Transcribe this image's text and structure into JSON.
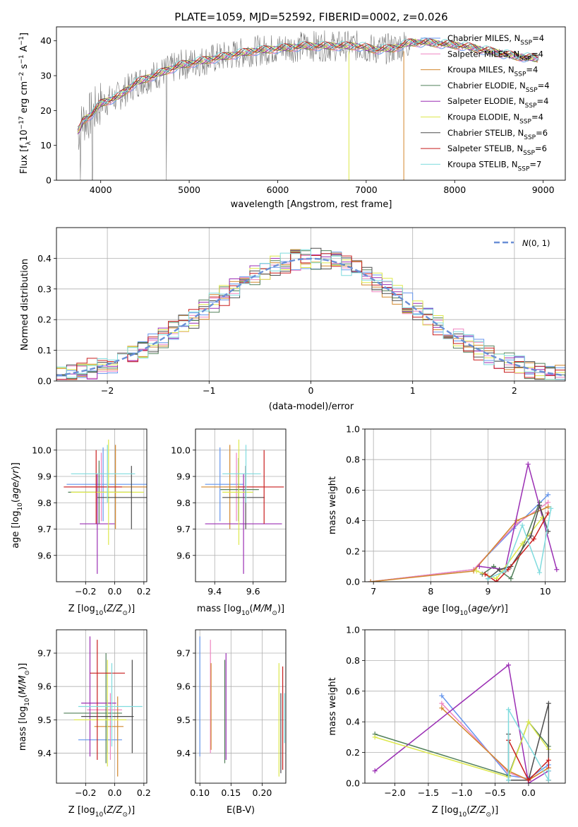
{
  "title": "PLATE=1059, MJD=52592, FIBERID=0002, z=0.026",
  "colors": [
    "#6495ed",
    "#ef85c1",
    "#d2872d",
    "#52805a",
    "#9b2fb4",
    "#dde84c",
    "#4d4d4d",
    "#c81e1e",
    "#7fdbde"
  ],
  "chart_data": [
    {
      "type": "line",
      "panel": "spectrum",
      "title": "PLATE=1059, MJD=52592, FIBERID=0002, z=0.026",
      "xlabel": "wavelength [Angstrom, rest frame]",
      "ylabel": "Flux [f_λ10^-17 erg cm^-2 s^-1 A^-1]",
      "xlim": [
        3500,
        9250
      ],
      "ylim": [
        0,
        44
      ],
      "xticks": [
        "4000",
        "5000",
        "6000",
        "7000",
        "8000",
        "9000"
      ],
      "yticks": [
        "0",
        "10",
        "20",
        "30",
        "40"
      ],
      "grid": false,
      "legend_position": "right",
      "legend": [
        {
          "text": "Chabrier MILES, N_SSP=4",
          "color": "#6495ed"
        },
        {
          "text": "Salpeter MILES, N_SSP=4",
          "color": "#ef85c1"
        },
        {
          "text": "Kroupa MILES, N_SSP=4",
          "color": "#d2872d"
        },
        {
          "text": "Chabrier ELODIE, N_SSP=4",
          "color": "#52805a"
        },
        {
          "text": "Salpeter ELODIE, N_SSP=4",
          "color": "#9b2fb4"
        },
        {
          "text": "Kroupa ELODIE, N_SSP=4",
          "color": "#dde84c"
        },
        {
          "text": "Chabrier STELIB, N_SSP=6",
          "color": "#4d4d4d"
        },
        {
          "text": "Salpeter STELIB, N_SSP=6",
          "color": "#c81e1e"
        },
        {
          "text": "Kroupa STELIB, N_SSP=7",
          "color": "#7fdbde"
        }
      ],
      "model_curve": {
        "x": [
          3750,
          3800,
          3900,
          4000,
          4100,
          4200,
          4300,
          4400,
          4500,
          4700,
          4900,
          5100,
          5300,
          5500,
          5700,
          5900,
          6100,
          6300,
          6500,
          6700,
          6900,
          7100,
          7300,
          7500,
          7700,
          7900,
          8100,
          8300,
          8500,
          8700,
          8900
        ],
        "y": [
          14,
          17,
          19,
          22,
          23,
          24,
          26,
          28,
          29,
          31,
          33,
          34,
          35,
          36,
          37,
          37.5,
          38,
          38.5,
          38.5,
          38.5,
          38.5,
          37.5,
          37.8,
          39.5,
          39.5,
          39,
          38.5,
          37.5,
          36.5,
          35.5,
          35
        ]
      },
      "data_extent": [
        3740,
        8950
      ]
    },
    {
      "type": "histogram",
      "panel": "residuals",
      "xlabel": "(data-model)/error",
      "ylabel": "Normed distribution",
      "xlim": [
        -2.5,
        2.5
      ],
      "ylim": [
        0,
        0.5
      ],
      "xticks": [
        "−2",
        "−1",
        "0",
        "1",
        "2"
      ],
      "yticks": [
        "0.0",
        "0.1",
        "0.2",
        "0.3",
        "0.4"
      ],
      "grid": true,
      "legend_position": "top-right",
      "legend_text": "N(0,1)",
      "gaussian": {
        "mean": 0,
        "sigma": 1,
        "color": "#6a8fd6"
      },
      "bin_width": 0.1,
      "bin_start": -2.5
    },
    {
      "type": "scatter",
      "panel": "age-vs-Z",
      "xlabel": "Z [log10(Z/Z⊙)]",
      "ylabel": "age [log10(age/yr)]",
      "xlim": [
        -0.4,
        0.22
      ],
      "ylim": [
        9.5,
        10.08
      ],
      "xticks": [
        "−0.2",
        "0.0",
        "0.2"
      ],
      "yticks": [
        "9.6",
        "9.7",
        "9.8",
        "9.9",
        "10.0"
      ],
      "grid": true,
      "points": [
        {
          "x": -0.05,
          "xerr": 0.28,
          "y": 9.87,
          "yerr": 0.14
        },
        {
          "x": -0.07,
          "xerr": 0.27,
          "y": 9.86,
          "yerr": 0.13
        },
        {
          "x": 0.02,
          "xerr": 0.25,
          "y": 9.86,
          "yerr": 0.16
        },
        {
          "x": -0.1,
          "xerr": 0.22,
          "y": 9.84,
          "yerr": 0.12
        },
        {
          "x": -0.12,
          "xerr": 0.12,
          "y": 9.72,
          "yerr": 0.19
        },
        {
          "x": -0.05,
          "xerr": 0.25,
          "y": 9.84,
          "yerr": 0.2
        },
        {
          "x": 0.1,
          "xerr": 0.22,
          "y": 9.82,
          "yerr": 0.12
        },
        {
          "x": -0.15,
          "xerr": 0.2,
          "y": 9.86,
          "yerr": 0.14
        },
        {
          "x": -0.08,
          "xerr": 0.22,
          "y": 9.91,
          "yerr": 0.11
        }
      ]
    },
    {
      "type": "scatter",
      "panel": "age-vs-mass",
      "xlabel": "mass [log10(M/M⊙)]",
      "ylabel": "",
      "xlim": [
        9.3,
        9.77
      ],
      "ylim": [
        9.5,
        10.08
      ],
      "xticks": [
        "9.4",
        "9.6"
      ],
      "yticks": [
        "9.6",
        "9.7",
        "9.8",
        "9.9",
        "10.0"
      ],
      "grid": true,
      "points": [
        {
          "x": 9.45,
          "xerr": 0.1,
          "y": 9.87,
          "yerr": 0.14
        },
        {
          "x": 9.53,
          "xerr": 0.08,
          "y": 9.86,
          "yerr": 0.13
        },
        {
          "x": 9.49,
          "xerr": 0.16,
          "y": 9.86,
          "yerr": 0.16
        },
        {
          "x": 9.53,
          "xerr": 0.1,
          "y": 9.85,
          "yerr": 0.12
        },
        {
          "x": 9.55,
          "xerr": 0.2,
          "y": 9.72,
          "yerr": 0.19
        },
        {
          "x": 9.52,
          "xerr": 0.08,
          "y": 9.84,
          "yerr": 0.2
        },
        {
          "x": 9.55,
          "xerr": 0.11,
          "y": 9.82,
          "yerr": 0.12
        },
        {
          "x": 9.64,
          "xerr": 0.12,
          "y": 9.86,
          "yerr": 0.14
        },
        {
          "x": 9.54,
          "xerr": 0.1,
          "y": 9.91,
          "yerr": 0.11
        }
      ]
    },
    {
      "type": "line",
      "panel": "mass-weight-vs-age",
      "xlabel": "age [log10(age/yr)]",
      "ylabel": "mass weight",
      "xlim": [
        6.85,
        10.35
      ],
      "ylim": [
        0,
        1
      ],
      "xticks": [
        "7",
        "8",
        "9",
        "10"
      ],
      "yticks": [
        "0.0",
        "0.2",
        "0.4",
        "0.6",
        "0.8",
        "1.0"
      ],
      "grid": true,
      "series": [
        {
          "x": [
            6.95,
            8.75,
            9.45,
            10.05
          ],
          "y": [
            0,
            0.08,
            0.35,
            0.57
          ]
        },
        {
          "x": [
            6.95,
            8.75,
            9.5,
            10.05
          ],
          "y": [
            0,
            0.08,
            0.38,
            0.52
          ]
        },
        {
          "x": [
            6.95,
            8.75,
            9.5,
            10.05
          ],
          "y": [
            0,
            0.07,
            0.4,
            0.49
          ]
        },
        {
          "x": [
            8.9,
            9.1,
            9.4,
            9.9
          ],
          "y": [
            0.05,
            0.1,
            0.02,
            0.52
          ]
        },
        {
          "x": [
            8.85,
            9.3,
            9.7,
            10.2
          ],
          "y": [
            0.1,
            0.08,
            0.77,
            0.08
          ]
        },
        {
          "x": [
            8.8,
            9.15,
            9.6,
            9.95
          ],
          "y": [
            0.07,
            0.02,
            0.25,
            0.42
          ]
        },
        {
          "x": [
            9.0,
            9.2,
            9.4,
            9.75,
            9.9,
            10.05
          ],
          "y": [
            0.02,
            0.08,
            0.1,
            0.3,
            0.5,
            0.33
          ]
        },
        {
          "x": [
            8.95,
            9.15,
            9.35,
            9.8,
            10.05
          ],
          "y": [
            0.05,
            0,
            0.08,
            0.28,
            0.45
          ]
        },
        {
          "x": [
            9.0,
            9.3,
            9.6,
            9.9,
            10.1
          ],
          "y": [
            0.02,
            0.07,
            0.37,
            0.06,
            0.48
          ]
        }
      ]
    },
    {
      "type": "scatter",
      "panel": "mass-vs-Z",
      "xlabel": "Z [log10(Z/Z⊙)]",
      "ylabel": "mass [log10(M/M⊙)]",
      "xlim": [
        -0.4,
        0.22
      ],
      "ylim": [
        9.31,
        9.77
      ],
      "xticks": [
        "−0.2",
        "0.0",
        "0.2"
      ],
      "yticks": [
        "9.4",
        "9.5",
        "9.6",
        "9.7"
      ],
      "grid": true,
      "points": [
        {
          "x": -0.1,
          "xerr": 0.15,
          "y": 9.44,
          "yerr": 0.0,
          "vx": -0.05,
          "vy0": 9.4,
          "vy1": 9.56
        },
        {
          "x": -0.07,
          "xerr": 0.12,
          "y": 9.53,
          "yerr": 0.0,
          "vx": -0.03,
          "vy0": 9.38,
          "vy1": 9.58
        },
        {
          "x": -0.04,
          "xerr": 0.1,
          "y": 9.48,
          "yerr": 0.0,
          "vx": 0.02,
          "vy0": 9.33,
          "vy1": 9.57
        },
        {
          "x": -0.15,
          "xerr": 0.2,
          "y": 9.52,
          "yerr": 0.0,
          "vx": -0.06,
          "vy0": 9.37,
          "vy1": 9.7
        },
        {
          "x": -0.11,
          "xerr": 0.12,
          "y": 9.55,
          "yerr": 0.0,
          "vx": -0.17,
          "vy0": 9.39,
          "vy1": 9.75
        },
        {
          "x": -0.1,
          "xerr": 0.18,
          "y": 9.5,
          "yerr": 0.0,
          "vx": -0.05,
          "vy0": 9.36,
          "vy1": 9.68
        },
        {
          "x": -0.05,
          "xerr": 0.18,
          "y": 9.51,
          "yerr": 0.0,
          "vx": 0.12,
          "vy0": 9.4,
          "vy1": 9.68
        },
        {
          "x": -0.05,
          "xerr": 0.12,
          "y": 9.64,
          "yerr": 0.0,
          "vx": -0.12,
          "vy0": 9.38,
          "vy1": 9.74
        },
        {
          "x": -0.03,
          "xerr": 0.22,
          "y": 9.54,
          "yerr": 0.0,
          "vx": -0.02,
          "vy0": 9.42,
          "vy1": 9.67
        }
      ]
    },
    {
      "type": "scatter",
      "panel": "mass-vs-EBV",
      "xlabel": "E(B-V)",
      "ylabel": "",
      "xlim": [
        0.093,
        0.238
      ],
      "ylim": [
        9.31,
        9.77
      ],
      "xticks": [
        "0.10",
        "0.15",
        "0.20"
      ],
      "yticks": [
        "9.4",
        "9.5",
        "9.6",
        "9.7"
      ],
      "grid": true,
      "points": [
        {
          "x": 0.1,
          "y0": 9.39,
          "y1": 9.75
        },
        {
          "x": 0.117,
          "y0": 9.4,
          "y1": 9.74
        },
        {
          "x": 0.118,
          "y0": 9.41,
          "y1": 9.67
        },
        {
          "x": 0.14,
          "y0": 9.37,
          "y1": 9.68
        },
        {
          "x": 0.142,
          "y0": 9.38,
          "y1": 9.7
        },
        {
          "x": 0.227,
          "y0": 9.33,
          "y1": 9.67
        },
        {
          "x": 0.23,
          "y0": 9.34,
          "y1": 9.58
        },
        {
          "x": 0.233,
          "y0": 9.35,
          "y1": 9.66
        },
        {
          "x": 0.236,
          "y0": 9.43,
          "y1": 9.58
        }
      ]
    },
    {
      "type": "line",
      "panel": "mass-weight-vs-Z",
      "xlabel": "Z [log10(Z/Z⊙)]",
      "ylabel": "mass weight",
      "xlim": [
        -2.45,
        0.55
      ],
      "ylim": [
        0,
        1
      ],
      "xticks": [
        "−2.0",
        "−1.5",
        "−1.0",
        "−0.5",
        "0.0"
      ],
      "yticks": [
        "0.0",
        "0.2",
        "0.4",
        "0.6",
        "0.8",
        "1.0"
      ],
      "grid": true,
      "series": [
        {
          "x": [
            -1.3,
            -0.3,
            0.0,
            0.3
          ],
          "y": [
            0.57,
            0.05,
            0.03,
            0.12
          ]
        },
        {
          "x": [
            -1.3,
            -0.3,
            0.0,
            0.3
          ],
          "y": [
            0.52,
            0.07,
            0.02,
            0.1
          ]
        },
        {
          "x": [
            -1.3,
            -0.3,
            0.0,
            0.3
          ],
          "y": [
            0.49,
            0.08,
            0.02,
            0.1
          ]
        },
        {
          "x": [
            -2.3,
            -0.3,
            0.0,
            0.3
          ],
          "y": [
            0.32,
            0.05,
            0.4,
            0.24
          ]
        },
        {
          "x": [
            -2.3,
            -0.3,
            0.0,
            0.3
          ],
          "y": [
            0.08,
            0.77,
            0.0,
            0.08
          ]
        },
        {
          "x": [
            -2.3,
            -0.3,
            0.0,
            0.3
          ],
          "y": [
            0.3,
            0.04,
            0.4,
            0.22
          ]
        },
        {
          "x": [
            -0.3,
            -0.3,
            0.0,
            0.3,
            0.3
          ],
          "y": [
            0.32,
            0.02,
            0.02,
            0.52,
            0.02
          ]
        },
        {
          "x": [
            -0.3,
            0.0,
            0.3,
            0.3
          ],
          "y": [
            0.28,
            0.02,
            0.15,
            0.02
          ]
        },
        {
          "x": [
            -0.3,
            -0.3,
            0.3,
            0.3
          ],
          "y": [
            0.02,
            0.48,
            0.02,
            0.08
          ]
        }
      ]
    }
  ]
}
